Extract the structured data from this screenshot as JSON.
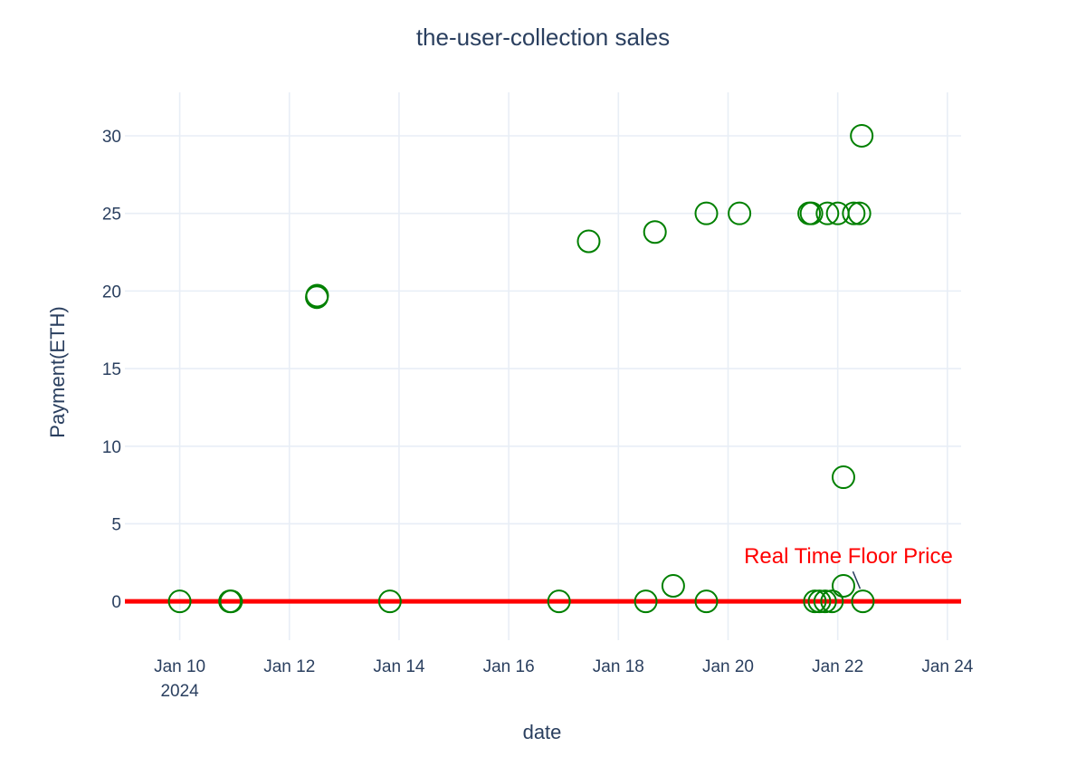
{
  "chart_data": {
    "type": "scatter",
    "title": "the-user-collection sales",
    "xlabel": "date",
    "ylabel": "Payment(ETH)",
    "x_axis_type": "date",
    "xlim": [
      "2024-01-09T00:00",
      "2024-01-24T06:00"
    ],
    "ylim": [
      -2.5,
      32.8
    ],
    "grid": true,
    "x_ticks": [
      {
        "value": "2024-01-10T00:00",
        "label": "Jan 10",
        "sublabel": "2024"
      },
      {
        "value": "2024-01-12T00:00",
        "label": "Jan 12",
        "sublabel": ""
      },
      {
        "value": "2024-01-14T00:00",
        "label": "Jan 14",
        "sublabel": ""
      },
      {
        "value": "2024-01-16T00:00",
        "label": "Jan 16",
        "sublabel": ""
      },
      {
        "value": "2024-01-18T00:00",
        "label": "Jan 18",
        "sublabel": ""
      },
      {
        "value": "2024-01-20T00:00",
        "label": "Jan 20",
        "sublabel": ""
      },
      {
        "value": "2024-01-22T00:00",
        "label": "Jan 22",
        "sublabel": ""
      },
      {
        "value": "2024-01-24T00:00",
        "label": "Jan 24",
        "sublabel": ""
      }
    ],
    "y_ticks": [
      0,
      5,
      10,
      15,
      20,
      25,
      30
    ],
    "marker_color": "#008000",
    "line_color": "#ff0000",
    "annotation_color": "#ff0000",
    "series": [
      {
        "mode": "markers",
        "points": [
          {
            "x": "2024-01-10T00:00",
            "y": 0
          },
          {
            "x": "2024-01-10T22:00",
            "y": 0
          },
          {
            "x": "2024-01-10T22:30",
            "y": 0
          },
          {
            "x": "2024-01-12T12:00",
            "y": 19.6
          },
          {
            "x": "2024-01-12T12:10",
            "y": 19.7
          },
          {
            "x": "2024-01-13T20:00",
            "y": 0
          },
          {
            "x": "2024-01-16T22:00",
            "y": 0
          },
          {
            "x": "2024-01-17T11:00",
            "y": 23.2
          },
          {
            "x": "2024-01-18T12:00",
            "y": 0
          },
          {
            "x": "2024-01-18T16:00",
            "y": 23.8
          },
          {
            "x": "2024-01-19T00:00",
            "y": 1
          },
          {
            "x": "2024-01-19T14:30",
            "y": 0
          },
          {
            "x": "2024-01-19T14:30",
            "y": 25
          },
          {
            "x": "2024-01-20T05:00",
            "y": 25
          },
          {
            "x": "2024-01-21T11:30",
            "y": 25
          },
          {
            "x": "2024-01-21T12:30",
            "y": 25
          },
          {
            "x": "2024-01-21T14:00",
            "y": 0
          },
          {
            "x": "2024-01-21T16:00",
            "y": 0
          },
          {
            "x": "2024-01-21T18:30",
            "y": 0
          },
          {
            "x": "2024-01-21T19:30",
            "y": 25
          },
          {
            "x": "2024-01-21T21:30",
            "y": 0
          },
          {
            "x": "2024-01-22T00:00",
            "y": 25
          },
          {
            "x": "2024-01-22T02:30",
            "y": 1
          },
          {
            "x": "2024-01-22T02:30",
            "y": 8
          },
          {
            "x": "2024-01-22T07:00",
            "y": 25
          },
          {
            "x": "2024-01-22T09:30",
            "y": 25
          },
          {
            "x": "2024-01-22T10:30",
            "y": 30
          },
          {
            "x": "2024-01-22T11:00",
            "y": 0
          }
        ]
      },
      {
        "mode": "lines",
        "points": [
          {
            "x": "2024-01-09T00:00",
            "y": 0
          },
          {
            "x": "2024-01-24T06:00",
            "y": 0
          }
        ]
      }
    ],
    "annotations": [
      {
        "text": "Real Time Floor Price",
        "x": "2024-01-22T11:00",
        "y": 0
      }
    ]
  }
}
